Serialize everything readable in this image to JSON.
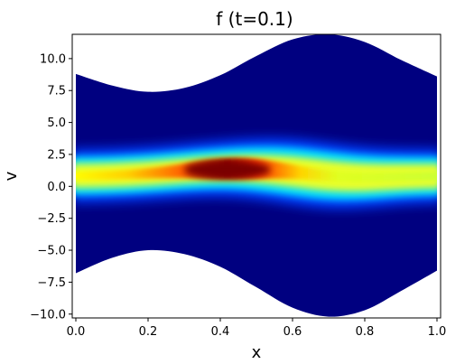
{
  "chart_data": {
    "type": "heatmap",
    "title": "f (t=0.1)",
    "xlabel": "x",
    "ylabel": "v",
    "xlim": [
      -0.01,
      1.01
    ],
    "ylim": [
      -10.3,
      11.9
    ],
    "x_ticks": [
      "0.0",
      "0.2",
      "0.4",
      "0.6",
      "0.8",
      "1.0"
    ],
    "y_ticks": [
      "−10.0",
      "−7.5",
      "−5.0",
      "−2.5",
      "0.0",
      "2.5",
      "5.0",
      "7.5",
      "10.0"
    ],
    "colormap": "jet",
    "background_color": "#000080",
    "grid": false,
    "domain_boundary": {
      "x": [
        0.0,
        0.1,
        0.2,
        0.3,
        0.4,
        0.5,
        0.6,
        0.7,
        0.8,
        0.9,
        1.0
      ],
      "v_upper": [
        8.8,
        7.9,
        7.4,
        7.7,
        8.7,
        10.2,
        11.5,
        11.9,
        11.3,
        9.9,
        8.6
      ],
      "v_lower": [
        -6.8,
        -5.6,
        -5.0,
        -5.3,
        -6.3,
        -7.9,
        -9.5,
        -10.2,
        -9.7,
        -8.2,
        -6.6
      ]
    },
    "density_peak": {
      "x": 0.42,
      "v": 1.3
    }
  }
}
